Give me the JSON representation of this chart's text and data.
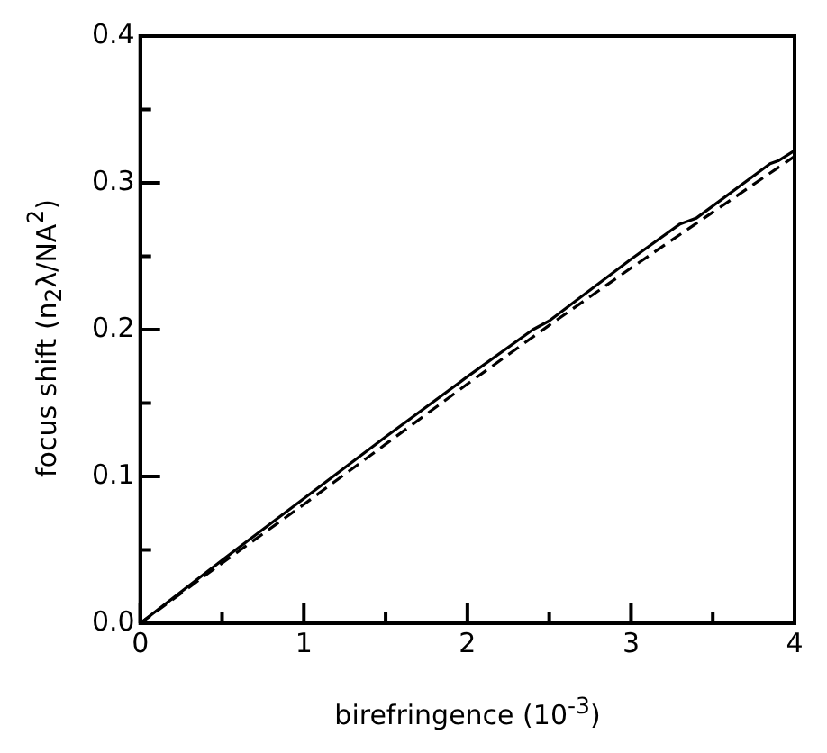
{
  "chart_data": {
    "type": "line",
    "xlabel": "birefringence  (10$^{-3}$)",
    "ylabel": "focus shift  (n$_{2}$λ/NA$^{2}$)",
    "xlim": [
      0,
      4
    ],
    "ylim": [
      0,
      0.4
    ],
    "xticks": [
      0,
      {
        "value": 0.5,
        "label": null
      },
      1,
      {
        "value": 1.5,
        "label": null
      },
      2,
      {
        "value": 2.5,
        "label": null
      },
      3,
      {
        "value": 3.5,
        "label": null
      },
      4
    ],
    "yticks": [
      {
        "value": 0,
        "label": "0.0"
      },
      {
        "value": 0.05,
        "label": null
      },
      0.1,
      {
        "value": 0.15,
        "label": null
      },
      0.2,
      {
        "value": 0.25,
        "label": null
      },
      0.3,
      {
        "value": 0.35,
        "label": null
      },
      0.4
    ],
    "grid": false,
    "legend": false,
    "marker": "none",
    "series": [
      {
        "color": "#000000",
        "line_style": "solid",
        "x": [
          0,
          0.5,
          1,
          1.5,
          2,
          2.4,
          2.5,
          3,
          3.3,
          3.4,
          3.85,
          3.9,
          4
        ],
        "values": [
          0,
          0.043,
          0.085,
          0.127,
          0.168,
          0.2,
          0.206,
          0.248,
          0.272,
          0.276,
          0.313,
          0.315,
          0.322
        ]
      },
      {
        "color": "#000000",
        "line_style": "dashed",
        "x": [
          0,
          0.5,
          1,
          1.5,
          2,
          2.5,
          3,
          3.5,
          4
        ],
        "values": [
          0,
          0.041,
          0.081,
          0.122,
          0.163,
          0.203,
          0.242,
          0.28,
          0.318
        ]
      }
    ]
  }
}
